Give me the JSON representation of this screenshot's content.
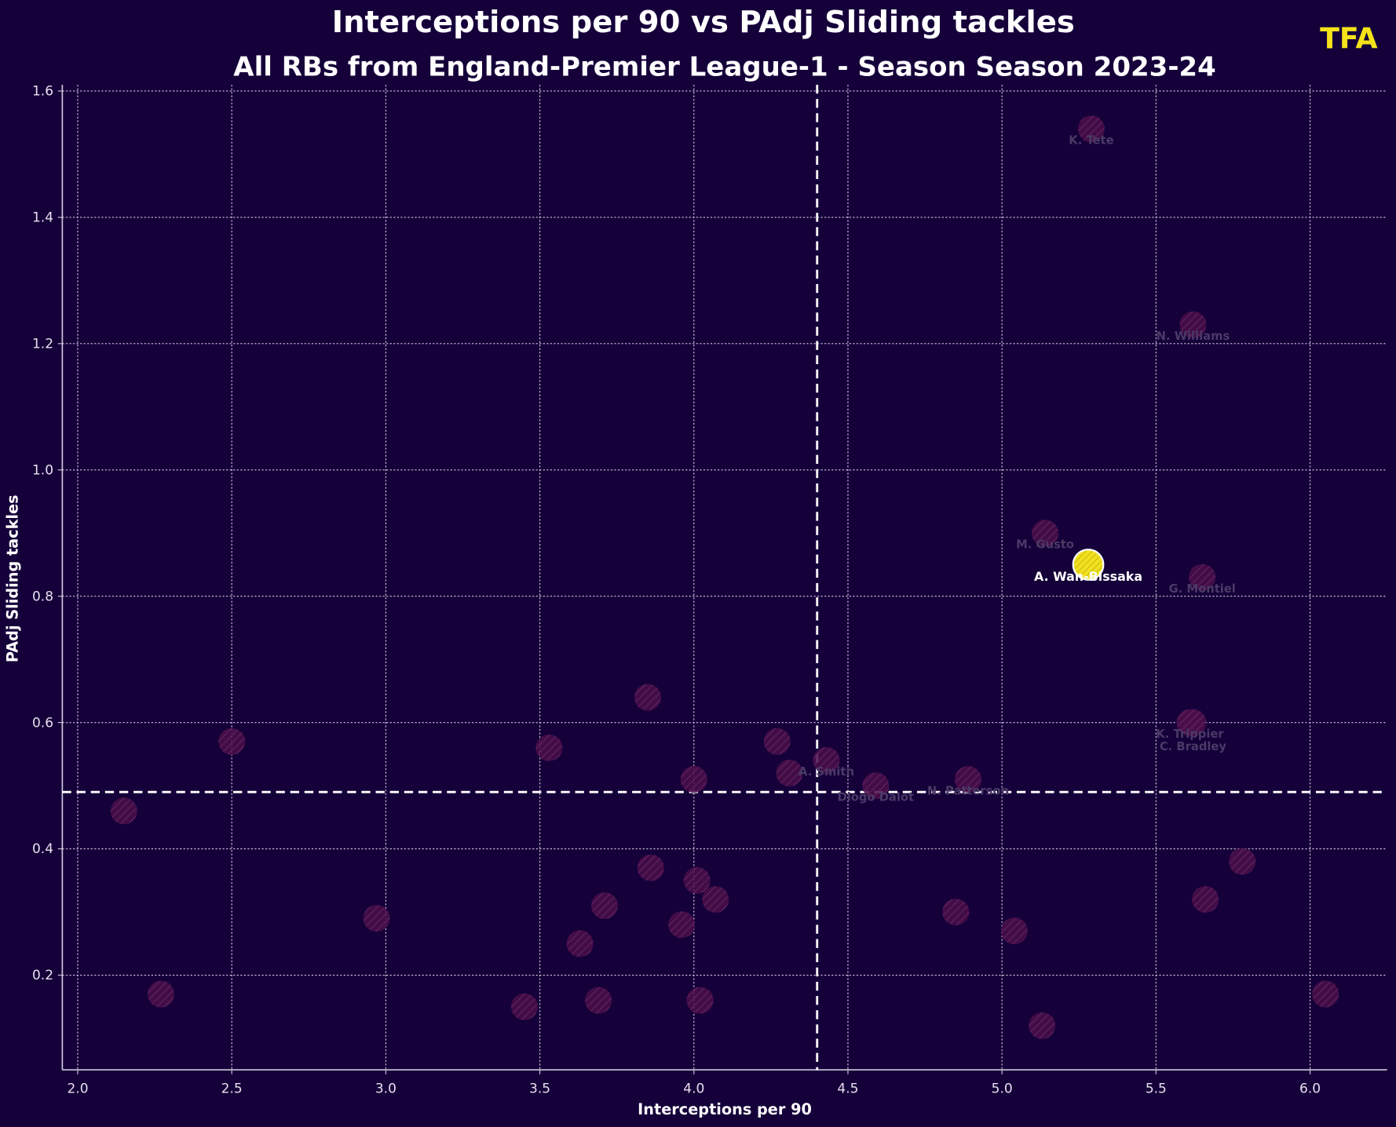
{
  "chart_data": {
    "type": "scatter",
    "title": "Interceptions per 90 vs PAdj Sliding tackles",
    "subtitle": "All RBs from England-Premier League-1 - Season Season 2023-24",
    "logo": "TFA",
    "xlabel": "Interceptions per 90",
    "ylabel": "PAdj Sliding tackles",
    "xlim": [
      1.95,
      6.25
    ],
    "ylim": [
      0.05,
      1.61
    ],
    "xticks": [
      "2.0",
      "2.5",
      "3.0",
      "3.5",
      "4.0",
      "4.5",
      "5.0",
      "5.5",
      "6.0"
    ],
    "yticks": [
      "0.2",
      "0.4",
      "0.6",
      "0.8",
      "1.0",
      "1.2",
      "1.4",
      "1.6"
    ],
    "grid": true,
    "mean_lines": {
      "x": 4.4,
      "y": 0.49
    },
    "colors": {
      "background": "#15003a",
      "point": "#4a0f4a",
      "highlight": "#f0e020",
      "logo": "#f5e31a"
    },
    "highlight": {
      "name": "A. Wan-Bissaka",
      "x": 5.28,
      "y": 0.85
    },
    "points": [
      {
        "name": "K. Tete",
        "x": 5.29,
        "y": 1.54
      },
      {
        "name": "N. Williams",
        "x": 5.62,
        "y": 1.23
      },
      {
        "name": "M. Gusto",
        "x": 5.14,
        "y": 0.9
      },
      {
        "name": "G. Montiel",
        "x": 5.65,
        "y": 0.83
      },
      {
        "name": "K. Trippier",
        "x": 5.61,
        "y": 0.6
      },
      {
        "name": "C. Bradley",
        "x": 5.62,
        "y": 0.6
      },
      {
        "name": "A. Smith",
        "x": 4.43,
        "y": 0.54
      },
      {
        "name": "Diogo Dalot",
        "x": 4.59,
        "y": 0.5
      },
      {
        "name": "N. Patterson",
        "x": 4.89,
        "y": 0.51
      },
      {
        "name": "",
        "x": 2.15,
        "y": 0.46
      },
      {
        "name": "",
        "x": 2.27,
        "y": 0.17
      },
      {
        "name": "",
        "x": 2.5,
        "y": 0.57
      },
      {
        "name": "",
        "x": 2.97,
        "y": 0.29
      },
      {
        "name": "",
        "x": 3.45,
        "y": 0.15
      },
      {
        "name": "",
        "x": 3.53,
        "y": 0.56
      },
      {
        "name": "",
        "x": 3.63,
        "y": 0.25
      },
      {
        "name": "",
        "x": 3.69,
        "y": 0.16
      },
      {
        "name": "",
        "x": 3.71,
        "y": 0.31
      },
      {
        "name": "",
        "x": 3.85,
        "y": 0.64
      },
      {
        "name": "",
        "x": 3.86,
        "y": 0.37
      },
      {
        "name": "",
        "x": 3.96,
        "y": 0.28
      },
      {
        "name": "",
        "x": 4.0,
        "y": 0.51
      },
      {
        "name": "",
        "x": 4.01,
        "y": 0.35
      },
      {
        "name": "",
        "x": 4.02,
        "y": 0.16
      },
      {
        "name": "",
        "x": 4.07,
        "y": 0.32
      },
      {
        "name": "",
        "x": 4.27,
        "y": 0.57
      },
      {
        "name": "",
        "x": 4.31,
        "y": 0.52
      },
      {
        "name": "",
        "x": 4.85,
        "y": 0.3
      },
      {
        "name": "",
        "x": 5.04,
        "y": 0.27
      },
      {
        "name": "",
        "x": 5.13,
        "y": 0.12
      },
      {
        "name": "",
        "x": 5.66,
        "y": 0.32
      },
      {
        "name": "",
        "x": 5.78,
        "y": 0.38
      },
      {
        "name": "",
        "x": 6.05,
        "y": 0.17
      }
    ]
  }
}
